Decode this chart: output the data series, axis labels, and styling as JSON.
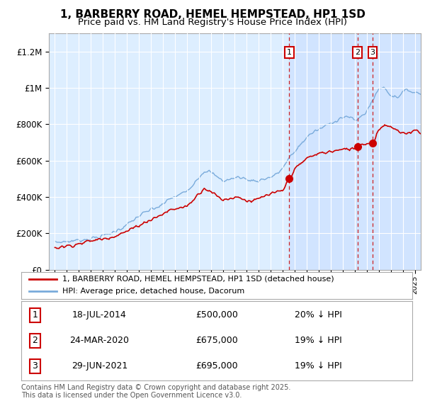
{
  "title": "1, BARBERRY ROAD, HEMEL HEMPSTEAD, HP1 1SD",
  "subtitle": "Price paid vs. HM Land Registry's House Price Index (HPI)",
  "background_color": "#ffffff",
  "plot_bg_color": "#ddeeff",
  "grid_color": "#ffffff",
  "shade_color": "#cce0ff",
  "ylim": [
    0,
    1300000
  ],
  "yticks": [
    0,
    200000,
    400000,
    600000,
    800000,
    1000000,
    1200000
  ],
  "ytick_labels": [
    "£0",
    "£200K",
    "£400K",
    "£600K",
    "£800K",
    "£1M",
    "£1.2M"
  ],
  "hpi_color": "#7aabdb",
  "price_color": "#cc0000",
  "dashed_line_color": "#cc2222",
  "annotation_box_color": "#cc0000",
  "sales": [
    {
      "date_num": 2014.54,
      "price": 500000,
      "label": "1"
    },
    {
      "date_num": 2020.23,
      "price": 675000,
      "label": "2"
    },
    {
      "date_num": 2021.49,
      "price": 695000,
      "label": "3"
    }
  ],
  "legend_entries": [
    "1, BARBERRY ROAD, HEMEL HEMPSTEAD, HP1 1SD (detached house)",
    "HPI: Average price, detached house, Dacorum"
  ],
  "table_data": [
    {
      "num": "1",
      "date": "18-JUL-2014",
      "price": "£500,000",
      "hpi": "20% ↓ HPI"
    },
    {
      "num": "2",
      "date": "24-MAR-2020",
      "price": "£675,000",
      "hpi": "19% ↓ HPI"
    },
    {
      "num": "3",
      "date": "29-JUN-2021",
      "price": "£695,000",
      "hpi": "19% ↓ HPI"
    }
  ],
  "footer": "Contains HM Land Registry data © Crown copyright and database right 2025.\nThis data is licensed under the Open Government Licence v3.0.",
  "xmin": 1994.5,
  "xmax": 2025.5
}
